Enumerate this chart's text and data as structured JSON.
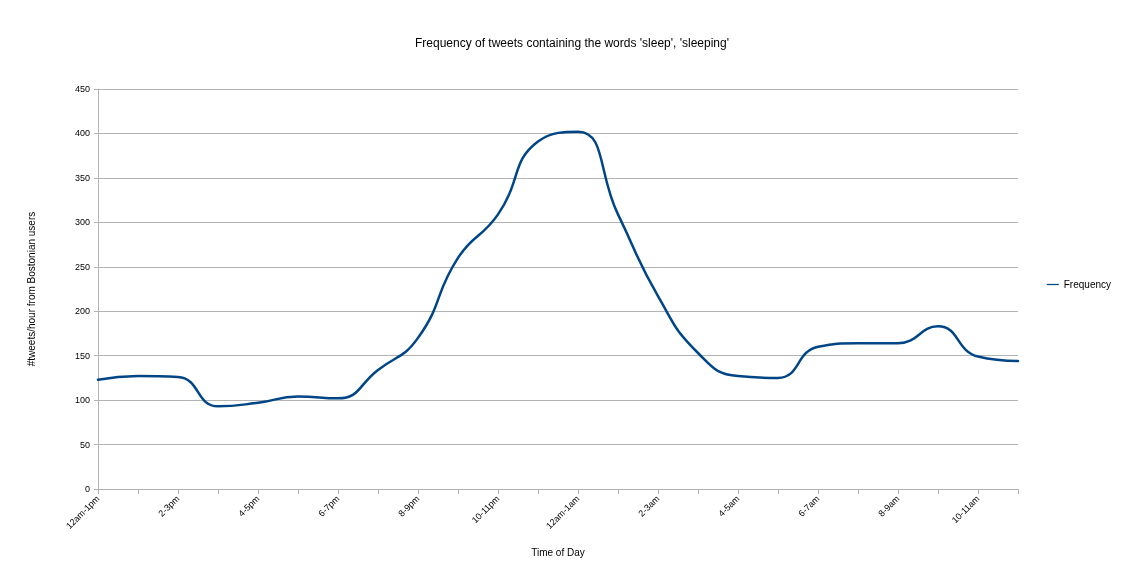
{
  "chart_data": {
    "type": "line",
    "title": "Frequency of tweets containing the words 'sleep', 'sleeping'",
    "xlabel": "Time of Day",
    "ylabel": "#tweets/hour from Bostonian users",
    "categories": [
      "12am-1pm",
      null,
      "2-3pm",
      null,
      "4-5pm",
      null,
      "6-7pm",
      null,
      "8-9pm",
      null,
      "10-11pm",
      null,
      "12am-1am",
      null,
      "2-3am",
      null,
      "4-5am",
      null,
      "6-7am",
      null,
      "8-9am",
      null,
      "10-11am",
      null
    ],
    "series": [
      {
        "name": "Frequency",
        "color": "#004586",
        "values": [
          123,
          127,
          126,
          93,
          97,
          104,
          102,
          134,
          170,
          260,
          309,
          391,
          402,
          309,
          217,
          153,
          127,
          125,
          160,
          164,
          164,
          183,
          149,
          144
        ]
      }
    ],
    "ylim": [
      0,
      450
    ],
    "yticks": [
      0,
      50,
      100,
      150,
      200,
      250,
      300,
      350,
      400,
      450
    ],
    "grid": "y",
    "legend": "right",
    "marker": "none",
    "line_style": "solid"
  }
}
